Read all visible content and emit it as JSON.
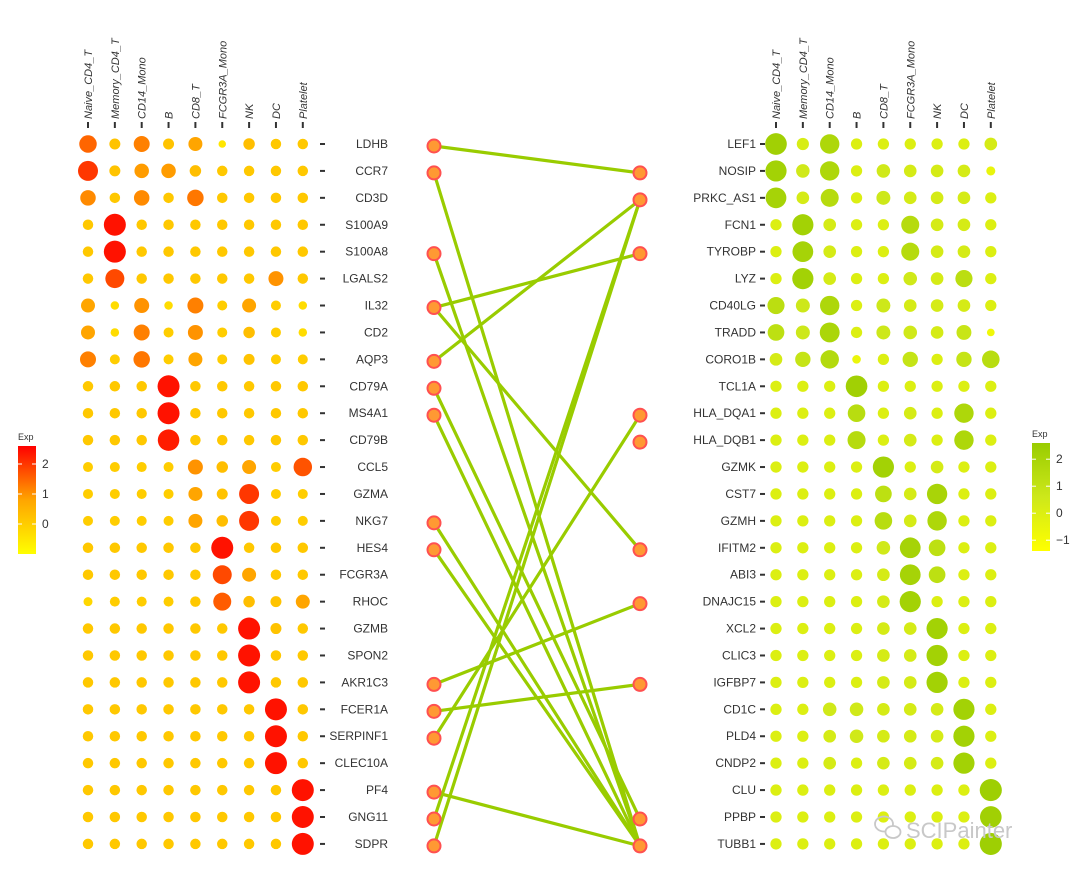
{
  "chart_data": [
    {
      "type": "dot",
      "panel": "left",
      "columns": [
        "Naive_CD4_T",
        "Memory_CD4_T",
        "CD14_Mono",
        "B",
        "CD8_T",
        "FCGR3A_Mono",
        "NK",
        "DC",
        "Platelet"
      ],
      "rows": [
        "LDHB",
        "CCR7",
        "CD3D",
        "S100A9",
        "S100A8",
        "LGALS2",
        "IL32",
        "CD2",
        "AQP3",
        "CD79A",
        "MS4A1",
        "CD79B",
        "CCL5",
        "GZMA",
        "NKG7",
        "HES4",
        "FCGR3A",
        "RHOC",
        "GZMB",
        "SPON2",
        "AKR1C3",
        "FCER1A",
        "SERPINF1",
        "CLEC10A",
        "PF4",
        "GNG11",
        "SDPR"
      ],
      "values": [
        [
          1.5,
          0.2,
          1.2,
          0.2,
          0.8,
          -0.5,
          0.3,
          0.1,
          0.1
        ],
        [
          2.0,
          0.2,
          0.9,
          0.9,
          0.3,
          0.1,
          0.1,
          0.1,
          0.1
        ],
        [
          1.1,
          0.1,
          1.1,
          0.1,
          1.3,
          0.1,
          0.1,
          0.1,
          0.1
        ],
        [
          0.1,
          2.4,
          0.1,
          0.1,
          0.1,
          0.1,
          0.1,
          0.1,
          0.1
        ],
        [
          0.1,
          2.4,
          0.1,
          0.1,
          0.1,
          0.1,
          0.1,
          0.1,
          0.1
        ],
        [
          0.1,
          1.8,
          0.1,
          0.1,
          0.1,
          0.1,
          0.1,
          1.0,
          0.1
        ],
        [
          0.8,
          -0.3,
          1.0,
          -0.3,
          1.2,
          0.0,
          0.8,
          0.0,
          -0.3
        ],
        [
          0.8,
          -0.3,
          1.2,
          0.0,
          1.0,
          0.0,
          0.3,
          0.0,
          -0.3
        ],
        [
          1.2,
          0.0,
          1.3,
          0.0,
          0.8,
          0.0,
          0.2,
          0.0,
          0.0
        ],
        [
          0.1,
          0.1,
          0.1,
          2.4,
          0.1,
          0.1,
          0.1,
          0.1,
          0.1
        ],
        [
          0.1,
          0.1,
          0.1,
          2.4,
          0.1,
          0.1,
          0.1,
          0.1,
          0.1
        ],
        [
          0.1,
          0.1,
          0.1,
          2.3,
          0.1,
          0.1,
          0.1,
          0.1,
          0.1
        ],
        [
          0.0,
          0.0,
          0.0,
          0.0,
          1.0,
          0.3,
          0.8,
          0.0,
          1.7
        ],
        [
          0.0,
          0.0,
          0.0,
          0.0,
          0.8,
          0.2,
          2.0,
          0.0,
          0.0
        ],
        [
          0.0,
          0.0,
          0.0,
          0.0,
          0.8,
          0.3,
          2.0,
          0.0,
          0.0
        ],
        [
          0.1,
          0.1,
          0.1,
          0.1,
          0.1,
          2.4,
          0.1,
          0.1,
          0.1
        ],
        [
          0.1,
          0.1,
          0.1,
          0.1,
          0.1,
          1.8,
          0.8,
          0.1,
          0.1
        ],
        [
          -0.2,
          0.0,
          0.0,
          0.0,
          0.1,
          1.6,
          0.3,
          0.2,
          0.8
        ],
        [
          0.1,
          0.1,
          0.1,
          0.1,
          0.1,
          0.1,
          2.4,
          0.2,
          0.1
        ],
        [
          0.1,
          0.1,
          0.1,
          0.1,
          0.1,
          0.1,
          2.4,
          0.1,
          0.1
        ],
        [
          0.1,
          0.1,
          0.1,
          0.1,
          0.1,
          0.1,
          2.4,
          0.1,
          0.1
        ],
        [
          0.1,
          0.1,
          0.1,
          0.1,
          0.1,
          0.1,
          0.1,
          2.4,
          0.1
        ],
        [
          0.1,
          0.1,
          0.1,
          0.1,
          0.1,
          0.1,
          0.1,
          2.4,
          0.1
        ],
        [
          0.1,
          0.1,
          0.1,
          0.1,
          0.1,
          0.1,
          0.1,
          2.4,
          0.1
        ],
        [
          0.1,
          0.1,
          0.1,
          0.1,
          0.1,
          0.1,
          0.1,
          0.1,
          2.4
        ],
        [
          0.1,
          0.1,
          0.1,
          0.1,
          0.1,
          0.1,
          0.1,
          0.1,
          2.4
        ],
        [
          0.1,
          0.1,
          0.1,
          0.1,
          0.1,
          0.1,
          0.1,
          0.1,
          2.4
        ]
      ],
      "legend": {
        "title": "Exp",
        "ticks": [
          2,
          1,
          0
        ],
        "range": [
          -1,
          2.6
        ],
        "colors": [
          "#ffff00",
          "#ffa500",
          "#ff0000"
        ]
      }
    },
    {
      "type": "dot",
      "panel": "right",
      "columns": [
        "Naive_CD4_T",
        "Memory_CD4_T",
        "CD14_Mono",
        "B",
        "CD8_T",
        "FCGR3A_Mono",
        "NK",
        "DC",
        "Platelet"
      ],
      "rows": [
        "LEF1",
        "NOSIP",
        "PRKC_AS1",
        "FCN1",
        "TYROBP",
        "LYZ",
        "CD40LG",
        "TRADD",
        "CORO1B",
        "TCL1A",
        "HLA_DQA1",
        "HLA_DQB1",
        "GZMK",
        "CST7",
        "GZMH",
        "IFITM2",
        "ABI3",
        "DNAJC15",
        "XCL2",
        "CLIC3",
        "IGFBP7",
        "CD1C",
        "PLD4",
        "CNDP2",
        "CLU",
        "PPBP",
        "TUBB1"
      ],
      "values": [
        [
          2.3,
          0.2,
          1.8,
          0.0,
          0.0,
          0.0,
          0.0,
          0.0,
          0.3
        ],
        [
          2.2,
          0.5,
          1.8,
          0.0,
          0.5,
          0.3,
          0.3,
          0.3,
          -0.5
        ],
        [
          2.1,
          0.3,
          1.5,
          0.0,
          0.6,
          0.3,
          0.3,
          0.3,
          0.0
        ],
        [
          0.0,
          2.2,
          0.3,
          0.0,
          0.0,
          1.5,
          0.3,
          0.3,
          0.0
        ],
        [
          0.0,
          2.1,
          0.3,
          0.0,
          0.0,
          1.5,
          0.3,
          0.3,
          0.0
        ],
        [
          0.0,
          2.2,
          0.3,
          0.0,
          0.0,
          0.5,
          0.3,
          1.3,
          0.0
        ],
        [
          1.3,
          0.6,
          1.8,
          0.0,
          0.6,
          0.3,
          0.3,
          0.3,
          0.0
        ],
        [
          1.2,
          0.6,
          1.9,
          0.0,
          0.6,
          0.5,
          0.3,
          0.8,
          -0.8
        ],
        [
          0.3,
          0.9,
          1.6,
          -0.6,
          0.0,
          0.9,
          0.0,
          0.9,
          1.4
        ],
        [
          0.0,
          0.0,
          0.0,
          2.3,
          0.0,
          0.0,
          0.0,
          0.0,
          0.0
        ],
        [
          0.0,
          0.0,
          0.0,
          1.4,
          0.0,
          0.3,
          0.0,
          1.8,
          0.0
        ],
        [
          0.0,
          0.0,
          0.0,
          1.5,
          0.0,
          0.3,
          0.0,
          1.8,
          0.0
        ],
        [
          0.0,
          0.0,
          0.0,
          0.0,
          2.2,
          0.0,
          0.3,
          0.0,
          0.0
        ],
        [
          0.0,
          0.0,
          0.0,
          0.0,
          1.2,
          0.3,
          2.0,
          0.0,
          0.0
        ],
        [
          0.0,
          0.0,
          0.0,
          0.0,
          1.4,
          0.3,
          1.8,
          0.0,
          0.0
        ],
        [
          0.0,
          0.0,
          0.0,
          0.0,
          0.5,
          2.1,
          1.2,
          0.0,
          0.0
        ],
        [
          0.0,
          0.0,
          0.0,
          0.0,
          0.3,
          2.1,
          1.2,
          0.0,
          0.0
        ],
        [
          0.0,
          0.0,
          0.0,
          0.0,
          0.3,
          2.2,
          0.0,
          0.0,
          0.0
        ],
        [
          0.0,
          0.0,
          0.0,
          0.0,
          0.3,
          0.3,
          2.2,
          0.0,
          0.0
        ],
        [
          0.0,
          0.0,
          0.0,
          0.0,
          0.3,
          0.3,
          2.2,
          0.0,
          0.0
        ],
        [
          0.0,
          0.0,
          0.0,
          0.0,
          0.3,
          0.3,
          2.2,
          0.0,
          0.0
        ],
        [
          0.0,
          0.0,
          0.5,
          0.5,
          0.3,
          0.3,
          0.3,
          2.2,
          0.0
        ],
        [
          0.0,
          0.0,
          0.3,
          0.5,
          0.3,
          0.3,
          0.3,
          2.2,
          0.0
        ],
        [
          0.0,
          0.0,
          0.3,
          0.0,
          0.3,
          0.3,
          0.3,
          2.2,
          0.0
        ],
        [
          0.0,
          0.0,
          0.0,
          0.0,
          0.0,
          0.0,
          0.0,
          0.0,
          2.4
        ],
        [
          0.0,
          0.0,
          0.0,
          0.0,
          0.0,
          0.0,
          0.0,
          0.0,
          2.3
        ],
        [
          0.0,
          0.0,
          0.0,
          0.0,
          0.0,
          0.0,
          0.0,
          0.0,
          2.4
        ]
      ],
      "legend": {
        "title": "Exp",
        "ticks": [
          2,
          1,
          0,
          -1
        ],
        "range": [
          -1.4,
          2.6
        ],
        "colors": [
          "#ffff00",
          "#cde81a",
          "#99cc00"
        ]
      }
    },
    {
      "type": "links",
      "panel": "middle",
      "node_color": "#ff9933",
      "node_stroke": "#ff5050",
      "line_color": "#99cc00",
      "left_nodes": [
        "LDHB",
        "CCR7",
        "S100A8",
        "IL32",
        "AQP3",
        "CD79A",
        "MS4A1",
        "NKG7",
        "HES4",
        "AKR1C3",
        "FCER1A",
        "SERPINF1",
        "PF4",
        "GNG11",
        "SDPR"
      ],
      "right_nodes": [
        "NOSIP",
        "PRKC_AS1",
        "TYROBP",
        "HLA_DQA1",
        "HLA_DQB1",
        "IFITM2",
        "DNAJC15",
        "IGFBP7",
        "PPBP",
        "TUBB1"
      ],
      "links": [
        [
          "LDHB",
          "NOSIP"
        ],
        [
          "CCR7",
          "TUBB1"
        ],
        [
          "S100A8",
          "TUBB1"
        ],
        [
          "IL32",
          "TYROBP"
        ],
        [
          "IL32",
          "IFITM2"
        ],
        [
          "AQP3",
          "PRKC_AS1"
        ],
        [
          "CD79A",
          "PPBP"
        ],
        [
          "MS4A1",
          "TUBB1"
        ],
        [
          "NKG7",
          "TUBB1"
        ],
        [
          "HES4",
          "TUBB1"
        ],
        [
          "AKR1C3",
          "DNAJC15"
        ],
        [
          "FCER1A",
          "IGFBP7"
        ],
        [
          "SERPINF1",
          "HLA_DQA1"
        ],
        [
          "PF4",
          "TUBB1"
        ],
        [
          "GNG11",
          "PRKC_AS1"
        ],
        [
          "SDPR",
          "PRKC_AS1"
        ]
      ]
    }
  ],
  "watermark": "SCIPainter"
}
